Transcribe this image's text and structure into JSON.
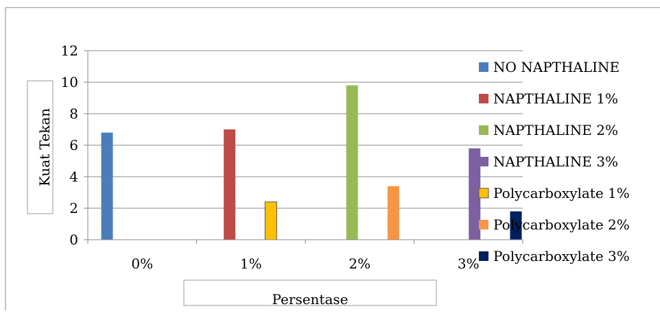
{
  "chart_data": {
    "type": "bar",
    "categories": [
      "0%",
      "1%",
      "2%",
      "3%"
    ],
    "series": [
      {
        "name": "NO NAPTHALINE",
        "color": "#4a7ebb",
        "values": [
          6.8,
          null,
          null,
          null
        ]
      },
      {
        "name": "NAPTHALINE 1%",
        "color": "#be4b48",
        "values": [
          null,
          7.0,
          null,
          null
        ]
      },
      {
        "name": "NAPTHALINE 2%",
        "color": "#98b954",
        "values": [
          null,
          null,
          9.8,
          null
        ]
      },
      {
        "name": "NAPTHALINE 3%",
        "color": "#7d60a0",
        "values": [
          null,
          null,
          null,
          5.8
        ]
      },
      {
        "name": "Polycarboxylate 1%",
        "color": "#ffc000",
        "values": [
          null,
          2.4,
          null,
          null
        ]
      },
      {
        "name": "Polycarboxylate 2%",
        "color": "#f79646",
        "values": [
          null,
          null,
          3.4,
          null
        ]
      },
      {
        "name": "Polycarboxylate 3%",
        "color": "#002060",
        "values": [
          null,
          null,
          null,
          1.8
        ]
      }
    ],
    "xlabel": "Persentase",
    "ylabel": "Kuat Tekan",
    "ylim": [
      0,
      12
    ],
    "yticks": [
      0,
      2,
      4,
      6,
      8,
      10,
      12
    ],
    "grid": true,
    "legend": "right"
  }
}
